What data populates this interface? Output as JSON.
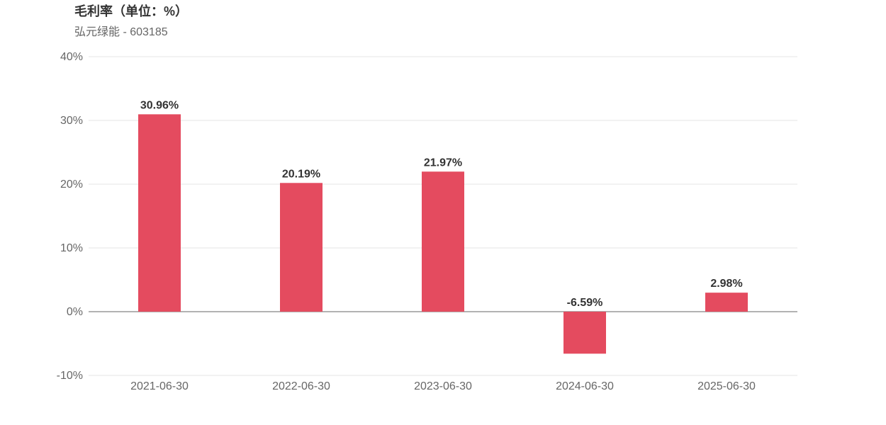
{
  "chart_data": {
    "type": "bar",
    "title": "毛利率（单位：%）",
    "subtitle": "弘元绿能 - 603185",
    "categories": [
      "2021-06-30",
      "2022-06-30",
      "2023-06-30",
      "2024-06-30",
      "2025-06-30"
    ],
    "values": [
      30.96,
      20.19,
      21.97,
      -6.59,
      2.98
    ],
    "value_labels": [
      "30.96%",
      "20.19%",
      "21.97%",
      "-6.59%",
      "2.98%"
    ],
    "ylim": [
      -10,
      40
    ],
    "yticks": [
      40,
      30,
      20,
      10,
      0,
      -10
    ],
    "ytick_labels": [
      "40%",
      "30%",
      "20%",
      "10%",
      "0%",
      "-10%"
    ],
    "grid": true,
    "legend": "none",
    "colors": {
      "bar": "#e44b5f",
      "grid": "#e6e6e6",
      "zero_line": "#666666"
    }
  }
}
